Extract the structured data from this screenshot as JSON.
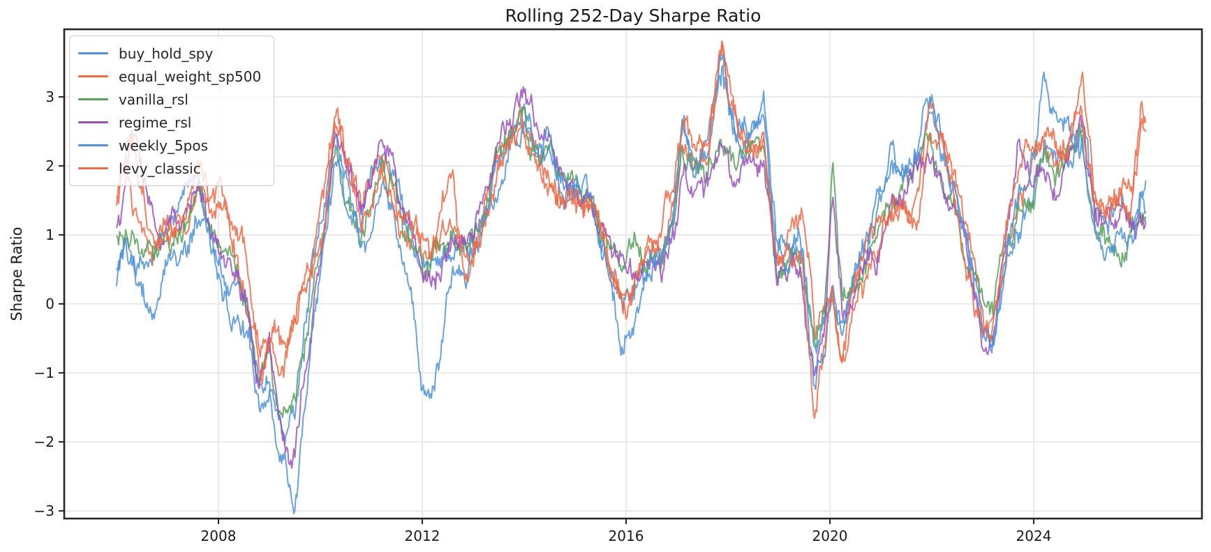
{
  "colors": {
    "background": "#ffffff",
    "grid": "#e7e7e7",
    "spine": "#262626",
    "tick_text": "#1a1a1a",
    "legend_border": "#cccccc",
    "blue": "#4E92D9",
    "orange": "#ED6A45",
    "green": "#57A05C",
    "purple": "#9A50BE"
  },
  "chart_data": {
    "type": "line",
    "title": "Rolling 252-Day Sharpe Ratio",
    "xlabel": "",
    "ylabel": "Sharpe Ratio",
    "xlim": [
      2005.0,
      2027.3
    ],
    "ylim": [
      -3.11,
      3.98
    ],
    "grid": true,
    "legend_position": "upper left",
    "xticks": {
      "values": [
        2008,
        2012,
        2016,
        2020,
        2024
      ],
      "labels": [
        "2008",
        "2012",
        "2016",
        "2020",
        "2024"
      ]
    },
    "yticks": {
      "values": [
        3,
        2,
        1,
        0,
        -1,
        -2,
        -3
      ],
      "labels": [
        "3",
        "2",
        "1",
        "0",
        "−1",
        "−2",
        "−3"
      ]
    },
    "x_years": [
      2006.0,
      2006.15,
      2006.3,
      2006.5,
      2006.7,
      2006.9,
      2007.1,
      2007.35,
      2007.6,
      2007.85,
      2008.1,
      2008.35,
      2008.6,
      2008.8,
      2009.0,
      2009.2,
      2009.35,
      2009.5,
      2009.65,
      2009.85,
      2010.05,
      2010.3,
      2010.55,
      2010.8,
      2011.0,
      2011.2,
      2011.45,
      2011.7,
      2011.95,
      2012.15,
      2012.4,
      2012.6,
      2012.9,
      2013.15,
      2013.45,
      2013.7,
      2013.95,
      2014.2,
      2014.5,
      2014.8,
      2015.05,
      2015.35,
      2015.65,
      2015.95,
      2016.2,
      2016.45,
      2016.7,
      2016.95,
      2017.1,
      2017.35,
      2017.6,
      2017.9,
      2018.15,
      2018.45,
      2018.7,
      2018.95,
      2019.2,
      2019.45,
      2019.7,
      2019.9,
      2020.05,
      2020.25,
      2020.5,
      2020.75,
      2020.95,
      2021.2,
      2021.45,
      2021.7,
      2021.95,
      2022.2,
      2022.5,
      2022.75,
      2023.0,
      2023.2,
      2023.45,
      2023.7,
      2023.95,
      2024.2,
      2024.45,
      2024.7,
      2024.95,
      2025.2,
      2025.45,
      2025.7,
      2025.95,
      2026.1,
      2026.2
    ],
    "series": [
      {
        "name": "buy_hold_spy",
        "color": "#4E92D9",
        "values": [
          0.45,
          0.85,
          0.7,
          0.5,
          0.55,
          0.8,
          1.1,
          1.35,
          1.75,
          1.2,
          0.45,
          0.0,
          -0.5,
          -1.35,
          -1.05,
          -1.75,
          -2.0,
          -1.7,
          -0.9,
          0.3,
          1.0,
          2.1,
          1.5,
          0.85,
          1.5,
          2.2,
          1.7,
          0.9,
          0.4,
          0.3,
          0.65,
          0.9,
          0.65,
          1.35,
          2.1,
          2.45,
          2.8,
          2.3,
          2.25,
          1.8,
          1.75,
          1.3,
          0.7,
          0.25,
          0.4,
          0.6,
          0.75,
          1.5,
          2.6,
          2.0,
          2.2,
          3.2,
          2.3,
          2.4,
          2.85,
          0.7,
          0.9,
          1.0,
          -0.6,
          0.1,
          0.4,
          -0.3,
          0.4,
          0.9,
          1.6,
          2.1,
          1.8,
          2.1,
          2.9,
          2.2,
          1.4,
          0.5,
          -0.4,
          -0.6,
          0.8,
          1.4,
          1.9,
          2.9,
          2.4,
          2.2,
          2.6,
          1.1,
          0.9,
          1.3,
          1.1,
          1.4,
          1.5
        ]
      },
      {
        "name": "equal_weight_sp500",
        "color": "#ED6A45",
        "values": [
          1.55,
          2.25,
          1.6,
          1.1,
          0.8,
          0.9,
          1.1,
          1.45,
          1.95,
          1.6,
          1.3,
          0.8,
          0.1,
          -0.8,
          -0.5,
          -0.75,
          -0.6,
          -0.1,
          0.3,
          0.6,
          1.3,
          2.85,
          1.9,
          1.2,
          1.6,
          2.1,
          1.6,
          1.0,
          0.6,
          0.5,
          0.9,
          1.1,
          0.5,
          1.3,
          2.0,
          2.3,
          2.65,
          2.2,
          1.9,
          1.5,
          1.55,
          1.1,
          0.6,
          0.1,
          0.5,
          0.75,
          0.9,
          1.6,
          2.3,
          1.9,
          2.1,
          3.45,
          2.6,
          2.2,
          2.4,
          0.5,
          0.8,
          0.9,
          -0.5,
          -0.2,
          0.2,
          -0.75,
          0.3,
          0.7,
          1.1,
          1.4,
          1.5,
          1.5,
          2.9,
          2.3,
          1.5,
          0.6,
          -0.3,
          -0.4,
          0.9,
          1.6,
          2.0,
          2.4,
          2.0,
          2.3,
          3.0,
          1.3,
          1.1,
          1.5,
          1.6,
          2.4,
          2.6
        ]
      },
      {
        "name": "vanilla_rsl",
        "color": "#57A05C",
        "values": [
          1.05,
          1.3,
          1.2,
          0.9,
          0.7,
          0.85,
          1.0,
          1.3,
          1.6,
          1.3,
          0.8,
          0.4,
          -0.1,
          -1.05,
          -0.8,
          -1.45,
          -1.7,
          -1.5,
          -0.8,
          0.2,
          1.1,
          2.0,
          1.5,
          1.0,
          1.5,
          2.3,
          1.75,
          1.0,
          0.5,
          0.45,
          0.7,
          0.9,
          0.7,
          1.3,
          2.0,
          2.4,
          2.75,
          2.25,
          2.1,
          1.75,
          1.9,
          1.4,
          0.8,
          0.35,
          0.5,
          0.6,
          0.7,
          1.3,
          2.1,
          1.8,
          1.9,
          2.7,
          2.1,
          2.0,
          2.2,
          0.55,
          0.7,
          0.6,
          -0.6,
          0.0,
          2.0,
          0.3,
          0.5,
          0.7,
          0.9,
          1.3,
          1.9,
          2.0,
          2.2,
          1.8,
          1.2,
          0.5,
          -0.3,
          -0.4,
          0.7,
          1.2,
          1.6,
          2.2,
          1.9,
          2.0,
          2.3,
          1.0,
          0.9,
          1.1,
          1.2,
          1.4,
          1.5
        ]
      },
      {
        "name": "regime_rsl",
        "color": "#9A50BE",
        "values": [
          1.25,
          1.7,
          2.45,
          1.6,
          0.9,
          0.8,
          1.0,
          1.25,
          1.5,
          1.2,
          0.7,
          0.3,
          -0.2,
          -1.3,
          -1.0,
          -1.9,
          -2.3,
          -2.2,
          -1.2,
          0.1,
          1.0,
          2.2,
          1.6,
          1.1,
          1.8,
          2.65,
          2.0,
          1.2,
          0.55,
          0.5,
          0.65,
          0.85,
          0.75,
          1.5,
          2.3,
          2.7,
          3.0,
          2.5,
          2.2,
          1.9,
          1.8,
          1.3,
          0.7,
          0.3,
          0.45,
          0.55,
          0.65,
          1.2,
          2.0,
          1.7,
          1.8,
          2.5,
          2.0,
          1.9,
          2.1,
          0.45,
          0.6,
          0.5,
          -0.75,
          -0.1,
          1.55,
          -0.25,
          0.3,
          0.5,
          0.7,
          1.1,
          1.6,
          1.9,
          2.1,
          1.7,
          1.1,
          0.4,
          -0.4,
          -0.55,
          1.0,
          2.3,
          1.7,
          2.0,
          1.8,
          2.2,
          2.4,
          0.9,
          0.8,
          1.0,
          0.9,
          1.1,
          1.2
        ]
      },
      {
        "name": "weekly_5pos",
        "color": "#4E92D9",
        "values": [
          0.6,
          0.95,
          0.75,
          0.45,
          0.4,
          0.65,
          0.9,
          1.1,
          1.4,
          1.0,
          0.3,
          -0.1,
          -0.6,
          -1.55,
          -1.3,
          -2.1,
          -2.5,
          -2.75,
          -1.6,
          -0.3,
          0.8,
          1.9,
          1.3,
          0.75,
          1.3,
          1.9,
          1.4,
          0.5,
          -0.85,
          -1.1,
          -0.5,
          0.3,
          0.45,
          1.1,
          1.8,
          2.2,
          2.6,
          2.1,
          2.3,
          1.7,
          1.6,
          1.1,
          0.4,
          -0.6,
          -0.4,
          0.3,
          0.6,
          1.5,
          2.9,
          2.1,
          2.3,
          3.3,
          2.2,
          2.5,
          2.8,
          0.6,
          0.8,
          0.9,
          -1.45,
          -0.6,
          0.3,
          -0.45,
          0.5,
          1.1,
          1.75,
          2.2,
          1.9,
          2.2,
          3.0,
          2.3,
          1.5,
          0.6,
          -0.5,
          -0.75,
          0.7,
          1.3,
          1.8,
          2.95,
          2.5,
          2.3,
          2.5,
          1.0,
          0.8,
          1.2,
          1.0,
          1.3,
          1.4
        ]
      },
      {
        "name": "levy_classic",
        "color": "#ED6A45",
        "values": [
          1.7,
          2.1,
          2.5,
          1.5,
          0.9,
          1.0,
          1.2,
          1.5,
          2.1,
          1.75,
          1.5,
          1.0,
          0.3,
          -0.9,
          -0.45,
          -0.7,
          -0.75,
          -0.3,
          0.25,
          0.6,
          1.2,
          2.6,
          1.8,
          1.15,
          1.5,
          2.0,
          1.7,
          1.1,
          0.7,
          0.6,
          1.3,
          1.6,
          0.2,
          1.1,
          1.9,
          2.2,
          2.5,
          2.1,
          1.85,
          1.5,
          1.6,
          1.2,
          0.7,
          0.2,
          0.55,
          0.8,
          1.0,
          1.7,
          2.4,
          2.0,
          2.2,
          3.5,
          2.5,
          2.1,
          2.3,
          0.4,
          0.7,
          0.6,
          -1.8,
          -0.8,
          0.1,
          -0.85,
          0.2,
          0.6,
          1.0,
          1.3,
          1.45,
          1.5,
          2.8,
          2.2,
          1.4,
          0.5,
          -0.2,
          -0.3,
          1.0,
          1.7,
          2.1,
          2.5,
          2.1,
          2.4,
          2.95,
          1.4,
          1.2,
          1.6,
          1.7,
          2.85,
          2.6
        ]
      }
    ],
    "render_hints": {
      "noise_hf": 0.16,
      "noise_wander_step": 0.22,
      "noise_wander_decay": 0.92,
      "noise_wander_scale": 1.1,
      "points_per_year": 50,
      "line_width": 2.0,
      "line_opacity": 0.85
    }
  }
}
